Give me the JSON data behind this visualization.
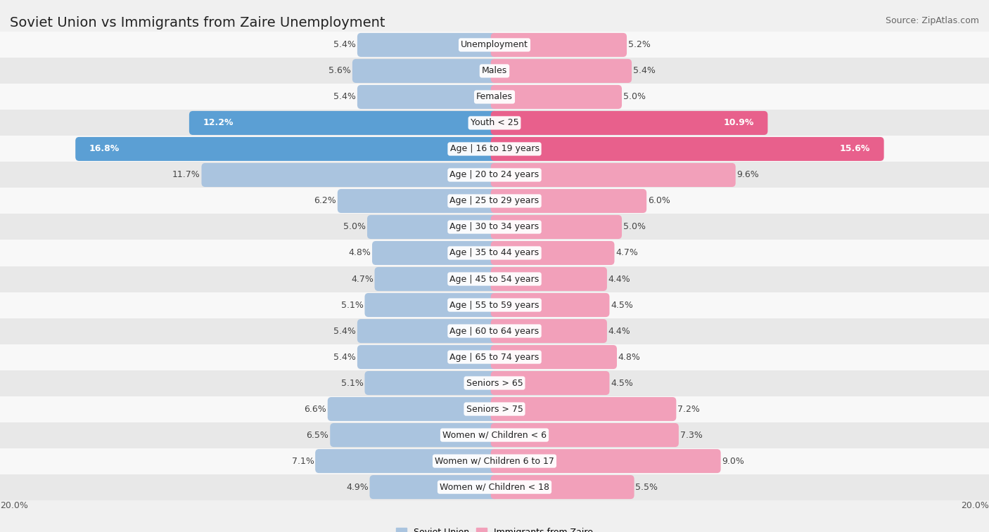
{
  "title": "Soviet Union vs Immigrants from Zaire Unemployment",
  "source": "Source: ZipAtlas.com",
  "categories": [
    "Unemployment",
    "Males",
    "Females",
    "Youth < 25",
    "Age | 16 to 19 years",
    "Age | 20 to 24 years",
    "Age | 25 to 29 years",
    "Age | 30 to 34 years",
    "Age | 35 to 44 years",
    "Age | 45 to 54 years",
    "Age | 55 to 59 years",
    "Age | 60 to 64 years",
    "Age | 65 to 74 years",
    "Seniors > 65",
    "Seniors > 75",
    "Women w/ Children < 6",
    "Women w/ Children 6 to 17",
    "Women w/ Children < 18"
  ],
  "soviet_values": [
    5.4,
    5.6,
    5.4,
    12.2,
    16.8,
    11.7,
    6.2,
    5.0,
    4.8,
    4.7,
    5.1,
    5.4,
    5.4,
    5.1,
    6.6,
    6.5,
    7.1,
    4.9
  ],
  "zaire_values": [
    5.2,
    5.4,
    5.0,
    10.9,
    15.6,
    9.6,
    6.0,
    5.0,
    4.7,
    4.4,
    4.5,
    4.4,
    4.8,
    4.5,
    7.2,
    7.3,
    9.0,
    5.5
  ],
  "soviet_color": "#aac4df",
  "zaire_color": "#f2a0ba",
  "soviet_highlight_color": "#5b9fd4",
  "zaire_highlight_color": "#e8608c",
  "highlight_rows": [
    3,
    4
  ],
  "bg_color": "#f0f0f0",
  "row_bg_light": "#f8f8f8",
  "row_bg_dark": "#e8e8e8",
  "axis_limit": 20.0,
  "legend_soviet": "Soviet Union",
  "legend_zaire": "Immigrants from Zaire",
  "bar_height": 0.62,
  "title_fontsize": 14,
  "label_fontsize": 9,
  "cat_fontsize": 9
}
